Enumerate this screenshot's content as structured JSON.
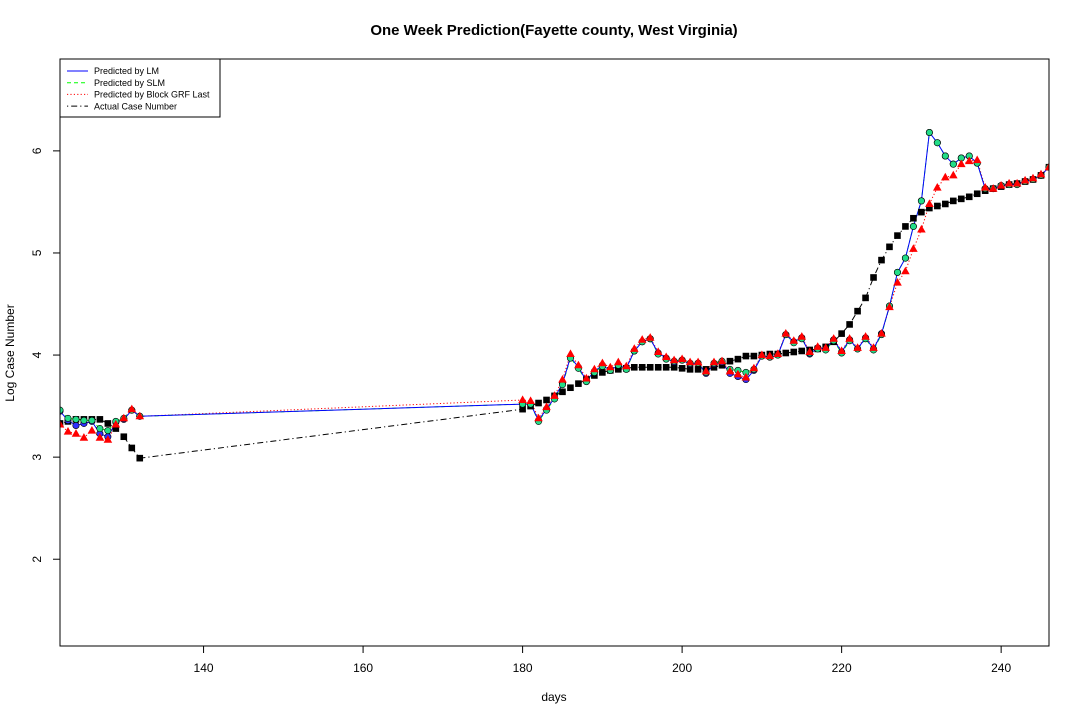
{
  "chart_data": {
    "type": "line",
    "title": "One Week Prediction(Fayette county, West Virginia)",
    "xlabel": "days",
    "ylabel": "Log Case Number",
    "xlim": [
      122,
      246
    ],
    "ylim": [
      1.15,
      6.9
    ],
    "xticks": [
      140,
      160,
      180,
      200,
      220,
      240
    ],
    "yticks": [
      2,
      3,
      4,
      5,
      6
    ],
    "grid": false,
    "legend_position": "top-left",
    "series": [
      {
        "name": "Predicted by LM",
        "color": "#0000ff",
        "line": "solid",
        "marker": "circle",
        "x": [
          122,
          123,
          124,
          125,
          126,
          127,
          128,
          129,
          130,
          131,
          132,
          180,
          181,
          182,
          183,
          184,
          185,
          186,
          187,
          188,
          189,
          190,
          191,
          192,
          193,
          194,
          195,
          196,
          197,
          198,
          199,
          200,
          201,
          202,
          203,
          204,
          205,
          206,
          207,
          208,
          209,
          210,
          211,
          212,
          213,
          214,
          215,
          216,
          217,
          218,
          219,
          220,
          221,
          222,
          223,
          224,
          225,
          226,
          227,
          228,
          229,
          230,
          231,
          232,
          233,
          234,
          235,
          236,
          237,
          238,
          239,
          240,
          241,
          242,
          243,
          244,
          245,
          246
        ],
        "values": [
          3.45,
          3.36,
          3.31,
          3.33,
          3.35,
          3.23,
          3.2,
          3.34,
          3.37,
          3.46,
          3.4,
          3.52,
          3.52,
          3.36,
          3.47,
          3.58,
          3.72,
          3.98,
          3.88,
          3.75,
          3.84,
          3.9,
          3.85,
          3.9,
          3.87,
          4.04,
          4.13,
          4.16,
          4.02,
          3.97,
          3.93,
          3.95,
          3.91,
          3.92,
          3.82,
          3.91,
          3.93,
          3.82,
          3.79,
          3.76,
          3.85,
          3.99,
          3.98,
          4.0,
          4.2,
          4.13,
          4.17,
          4.01,
          4.07,
          4.06,
          4.15,
          4.03,
          4.15,
          4.06,
          4.17,
          4.06,
          4.21,
          4.48,
          4.81,
          4.95,
          5.26,
          5.51,
          6.18,
          6.08,
          5.95,
          5.87,
          5.93,
          5.95,
          5.88,
          5.63,
          5.63,
          5.66,
          5.67,
          5.67,
          5.7,
          5.72,
          5.76,
          5.84
        ]
      },
      {
        "name": "Predicted by SLM",
        "color": "#00ff00",
        "line": "dashed",
        "marker": "circle",
        "x": [
          122,
          123,
          124,
          125,
          126,
          127,
          128,
          129,
          130,
          131,
          132,
          180,
          181,
          182,
          183,
          184,
          185,
          186,
          187,
          188,
          189,
          190,
          191,
          192,
          193,
          194,
          195,
          196,
          197,
          198,
          199,
          200,
          201,
          202,
          203,
          204,
          205,
          206,
          207,
          208,
          209,
          210,
          211,
          212,
          213,
          214,
          215,
          216,
          217,
          218,
          219,
          220,
          221,
          222,
          223,
          224,
          225,
          226,
          227,
          228,
          229,
          230,
          231,
          232,
          233,
          234,
          235,
          236,
          237,
          238,
          239,
          240,
          241,
          242,
          243,
          244,
          245,
          246
        ],
        "values": [
          3.46,
          3.38,
          3.37,
          3.36,
          3.36,
          3.28,
          3.26,
          3.35,
          3.38,
          3.46,
          3.4,
          3.52,
          3.52,
          3.35,
          3.46,
          3.57,
          3.71,
          3.97,
          3.87,
          3.74,
          3.83,
          3.89,
          3.85,
          3.9,
          3.86,
          4.04,
          4.13,
          4.16,
          4.01,
          3.96,
          3.94,
          3.95,
          3.92,
          3.92,
          3.83,
          3.92,
          3.94,
          3.86,
          3.85,
          3.83,
          3.86,
          3.99,
          3.98,
          4.0,
          4.2,
          4.12,
          4.16,
          4.02,
          4.06,
          4.05,
          4.14,
          4.02,
          4.14,
          4.06,
          4.16,
          4.05,
          4.2,
          4.48,
          4.81,
          4.95,
          5.26,
          5.51,
          6.18,
          6.08,
          5.95,
          5.87,
          5.93,
          5.95,
          5.88,
          5.63,
          5.63,
          5.66,
          5.67,
          5.67,
          5.7,
          5.72,
          5.76,
          5.84
        ]
      },
      {
        "name": "Predicted by Block GRF Last",
        "color": "#ff0000",
        "line": "dotted",
        "marker": "triangle",
        "x": [
          122,
          123,
          124,
          125,
          126,
          127,
          128,
          129,
          130,
          131,
          132,
          180,
          181,
          182,
          183,
          184,
          185,
          186,
          187,
          188,
          189,
          190,
          191,
          192,
          193,
          194,
          195,
          196,
          197,
          198,
          199,
          200,
          201,
          202,
          203,
          204,
          205,
          206,
          207,
          208,
          209,
          210,
          211,
          212,
          213,
          214,
          215,
          216,
          217,
          218,
          219,
          220,
          221,
          222,
          223,
          224,
          225,
          226,
          227,
          228,
          229,
          230,
          231,
          232,
          233,
          234,
          235,
          236,
          237,
          238,
          239,
          240,
          241,
          242,
          243,
          244,
          245,
          246
        ],
        "values": [
          3.32,
          3.25,
          3.23,
          3.19,
          3.26,
          3.19,
          3.17,
          3.32,
          3.38,
          3.47,
          3.4,
          3.56,
          3.55,
          3.38,
          3.49,
          3.6,
          3.76,
          4.01,
          3.9,
          3.77,
          3.86,
          3.92,
          3.88,
          3.93,
          3.89,
          4.06,
          4.15,
          4.17,
          4.03,
          3.98,
          3.95,
          3.96,
          3.93,
          3.93,
          3.84,
          3.93,
          3.94,
          3.84,
          3.81,
          3.78,
          3.87,
          4.0,
          3.99,
          4.01,
          4.21,
          4.14,
          4.18,
          4.03,
          4.08,
          4.07,
          4.16,
          4.04,
          4.16,
          4.07,
          4.18,
          4.07,
          4.21,
          4.47,
          4.71,
          4.82,
          5.04,
          5.23,
          5.48,
          5.64,
          5.74,
          5.76,
          5.87,
          5.9,
          5.91,
          5.64,
          5.63,
          5.66,
          5.68,
          5.68,
          5.71,
          5.73,
          5.77,
          5.84
        ]
      },
      {
        "name": "Actual Case Number",
        "color": "#000000",
        "line": "dotdash",
        "marker": "square",
        "x": [
          122,
          123,
          124,
          125,
          126,
          127,
          128,
          129,
          130,
          131,
          132,
          180,
          181,
          182,
          183,
          184,
          185,
          186,
          187,
          188,
          189,
          190,
          191,
          192,
          193,
          194,
          195,
          196,
          197,
          198,
          199,
          200,
          201,
          202,
          203,
          204,
          205,
          206,
          207,
          208,
          209,
          210,
          211,
          212,
          213,
          214,
          215,
          216,
          217,
          218,
          219,
          220,
          221,
          222,
          223,
          224,
          225,
          226,
          227,
          228,
          229,
          230,
          231,
          232,
          233,
          234,
          235,
          236,
          237,
          238,
          239,
          240,
          241,
          242,
          243,
          244,
          245,
          246
        ],
        "values": [
          3.33,
          3.35,
          3.37,
          3.37,
          3.37,
          3.37,
          3.33,
          3.28,
          3.2,
          3.09,
          2.99,
          3.47,
          3.5,
          3.53,
          3.56,
          3.6,
          3.64,
          3.68,
          3.72,
          3.76,
          3.8,
          3.83,
          3.85,
          3.86,
          3.87,
          3.88,
          3.88,
          3.88,
          3.88,
          3.88,
          3.88,
          3.87,
          3.86,
          3.86,
          3.86,
          3.88,
          3.9,
          3.94,
          3.96,
          3.99,
          3.99,
          4.0,
          4.01,
          4.01,
          4.02,
          4.03,
          4.04,
          4.05,
          4.06,
          4.08,
          4.13,
          4.21,
          4.3,
          4.43,
          4.56,
          4.76,
          4.93,
          5.06,
          5.17,
          5.26,
          5.34,
          5.4,
          5.44,
          5.46,
          5.48,
          5.51,
          5.53,
          5.55,
          5.58,
          5.61,
          5.63,
          5.65,
          5.67,
          5.68,
          5.7,
          5.72,
          5.76,
          5.84
        ]
      }
    ]
  }
}
